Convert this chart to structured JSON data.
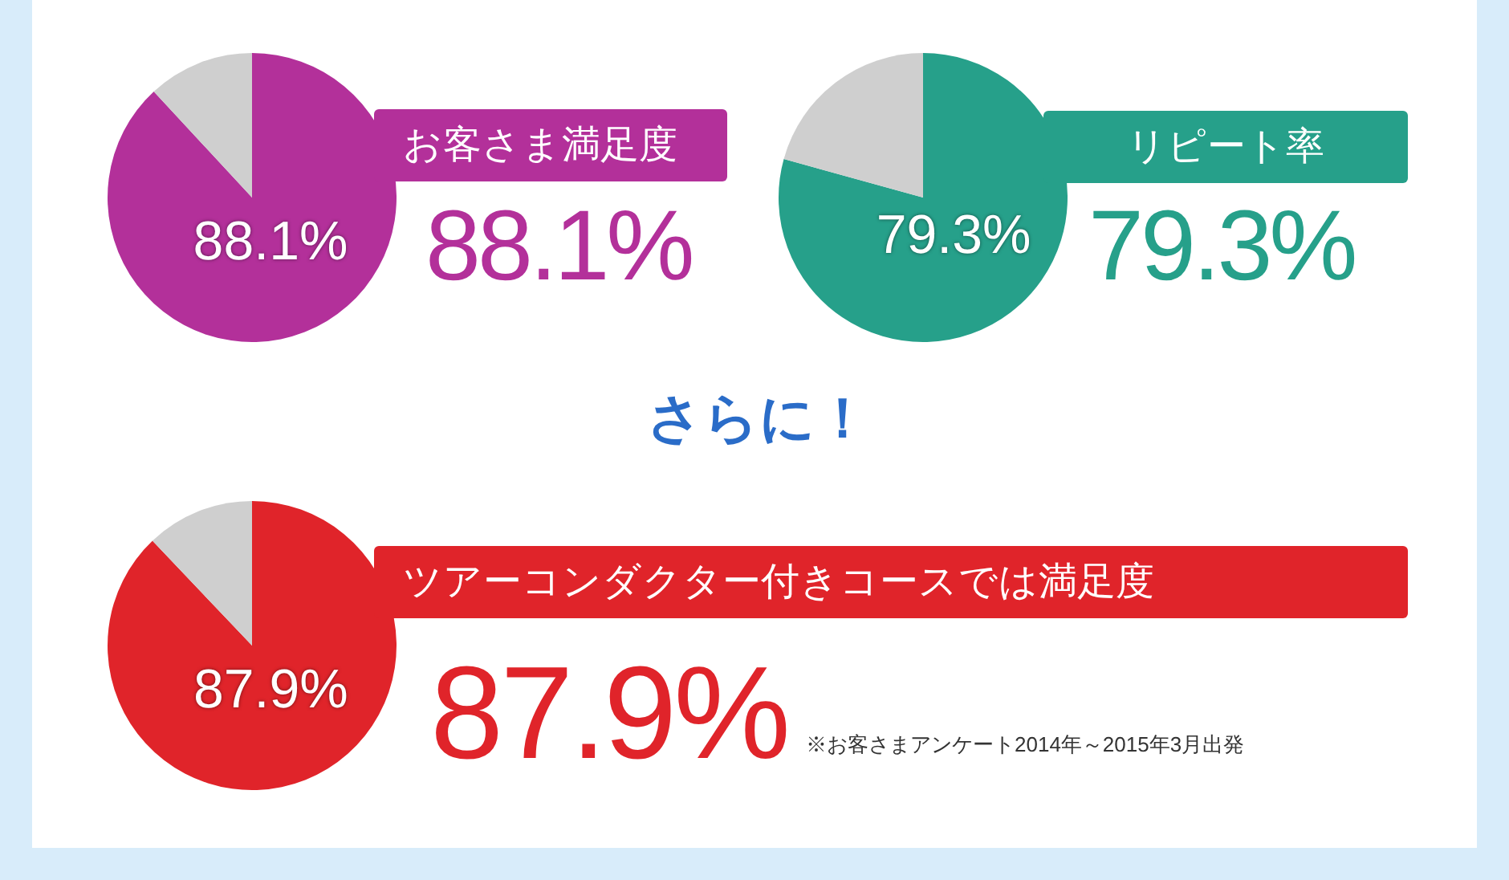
{
  "chart_data": [
    {
      "type": "pie",
      "title": "お客さま満足度",
      "categories": [
        null,
        null
      ],
      "values": [
        88.1,
        11.9
      ],
      "colors": [
        "#b3309a",
        "#cfcfcf"
      ],
      "value_labels": [
        "88.1%",
        null
      ],
      "annotations": [
        "88.1%"
      ],
      "legend": false
    },
    {
      "type": "pie",
      "title": "リピート率",
      "categories": [
        null,
        null
      ],
      "values": [
        79.3,
        20.7
      ],
      "colors": [
        "#26a08a",
        "#cfcfcf"
      ],
      "value_labels": [
        "79.3%",
        null
      ],
      "annotations": [
        "79.3%"
      ],
      "legend": false
    },
    {
      "type": "pie",
      "title": "ツアーコンダクター付きコースでは満足度",
      "categories": [
        null,
        null
      ],
      "values": [
        87.9,
        12.1
      ],
      "colors": [
        "#e0242a",
        "#cfcfcf"
      ],
      "value_labels": [
        "87.9%",
        null
      ],
      "annotations": [
        "さらに！",
        "87.9%",
        "※お客さまアンケート2014年～2015年3月出発"
      ],
      "legend": false
    }
  ]
}
